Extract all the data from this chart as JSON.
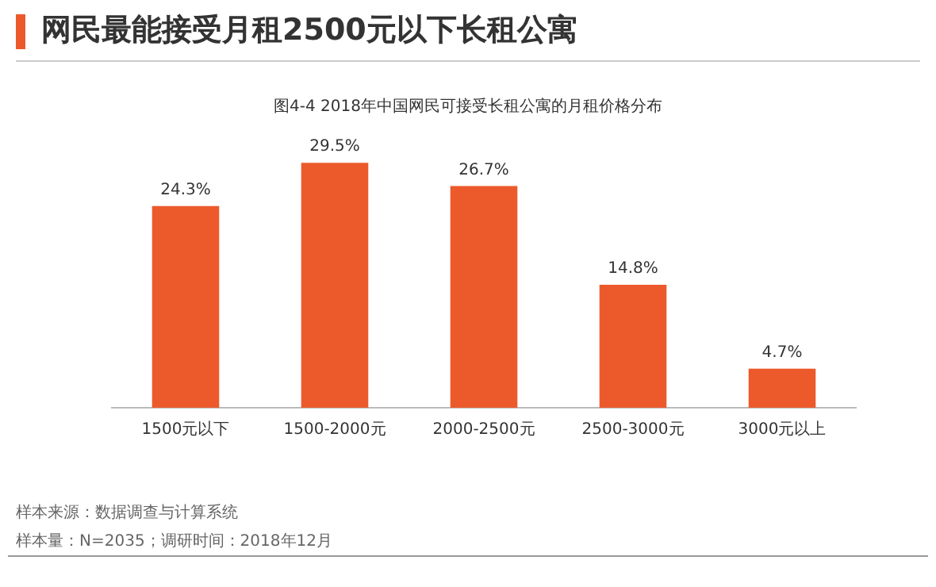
{
  "chart_data": {
    "type": "bar",
    "title": "网民最能接受月租2500元以下长租公寓",
    "subtitle": "图4-4 2018年中国网民可接受长租公寓的月租价格分布",
    "categories": [
      "1500元以下",
      "1500-2000元",
      "2000-2500元",
      "2500-3000元",
      "3000元以上"
    ],
    "values": [
      24.3,
      29.5,
      26.7,
      14.8,
      4.7
    ],
    "value_labels": [
      "24.3%",
      "29.5%",
      "26.7%",
      "14.8%",
      "4.7%"
    ],
    "color": "#ec5a2c",
    "tick_labels": "x",
    "grid": false,
    "legend": false,
    "annotations": [
      "样本来源：数据调查与计算系统",
      "样本量：N=2035；调研时间：2018年12月"
    ]
  }
}
